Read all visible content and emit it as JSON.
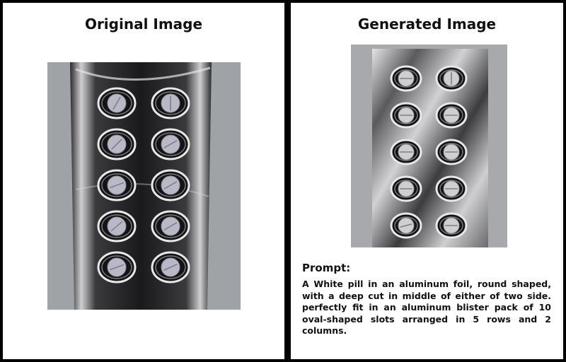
{
  "panels": {
    "left": {
      "title": "Original Image"
    },
    "right": {
      "title": "Generated Image"
    }
  },
  "prompt": {
    "label": "Prompt:",
    "text": "A White pill in an aluminum foil, round shaped, with a deep cut in middle of either of two side. perfectly fit in an aluminum blister pack of 10 oval-shaped slots arranged in 5 rows and 2 columns."
  },
  "colors": {
    "border": "#000000",
    "panel_bg": "#ffffff",
    "photo_bg": "#9fa2a6",
    "foil_dark": "#1c1c1e",
    "foil_light": "#d8d8da",
    "pill_left": "#b9b8c6",
    "pill_right": "#cfcfcf"
  },
  "blister": {
    "rows": 5,
    "columns": 2
  }
}
